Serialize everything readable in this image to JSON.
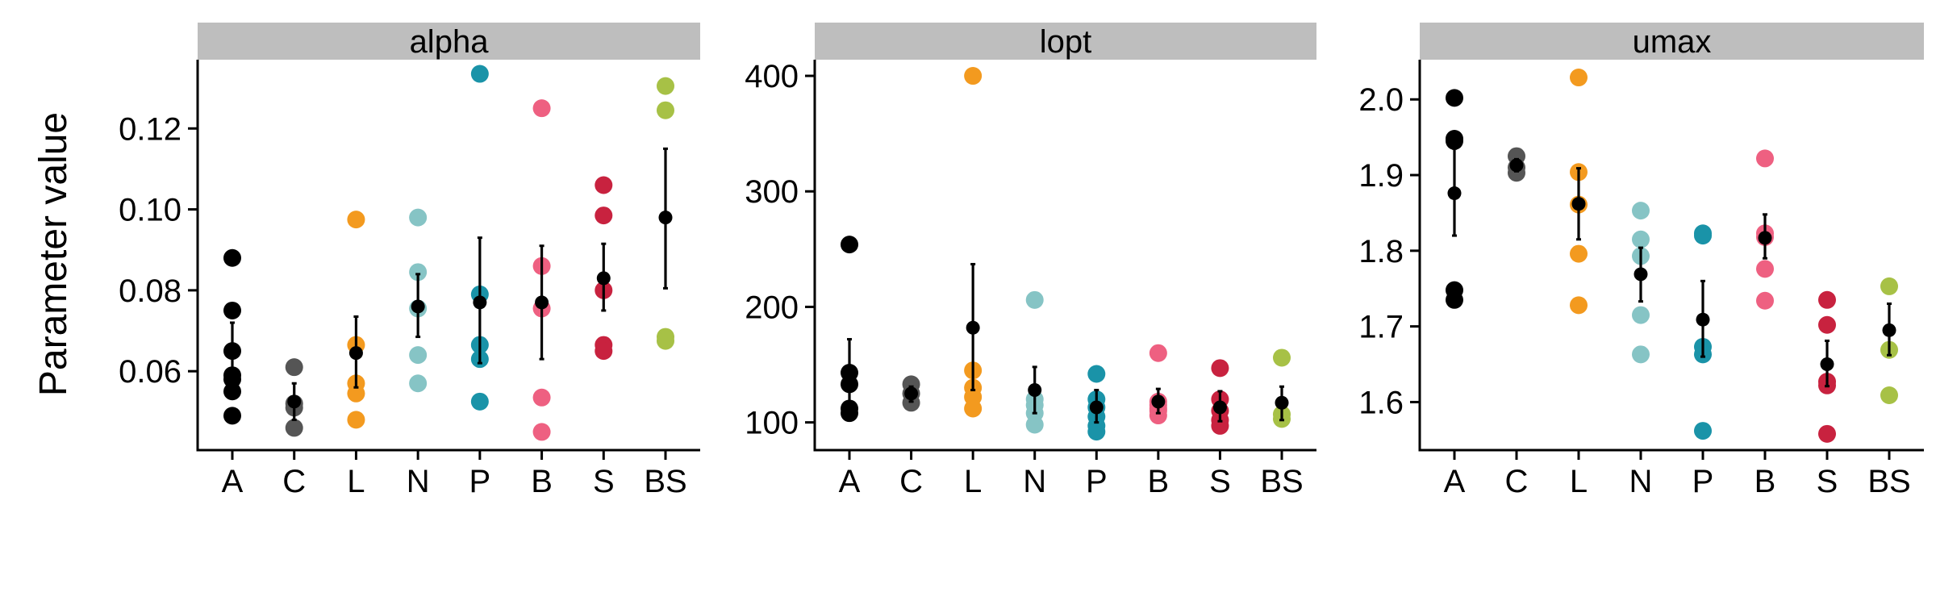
{
  "chart_data": {
    "type": "scatter",
    "ylabel": "Parameter value",
    "categories": [
      "A",
      "C",
      "L",
      "N",
      "P",
      "B",
      "S",
      "BS"
    ],
    "colors": {
      "A": "#000000",
      "C": "#555555",
      "L": "#F39A1F",
      "N": "#86C4C5",
      "P": "#1A93A8",
      "B": "#EE6081",
      "S": "#C8223F",
      "BS": "#A7C146",
      "mean": "#000000",
      "strip": "#BEBEBE"
    },
    "panels": [
      {
        "title": "alpha",
        "ylim": [
          0.0405,
          0.137
        ],
        "yticks": [
          0.06,
          0.08,
          0.1,
          0.12
        ],
        "ytick_labels": [
          "0.06",
          "0.08",
          "0.10",
          "0.12"
        ],
        "groups": [
          {
            "cat": "A",
            "points": [
              0.088,
              0.075,
              0.065,
              0.059,
              0.058,
              0.055,
              0.049
            ],
            "mean": 0.065,
            "lo": 0.058,
            "hi": 0.072
          },
          {
            "cat": "C",
            "points": [
              0.061,
              0.052,
              0.051,
              0.046
            ],
            "mean": 0.0525,
            "lo": 0.048,
            "hi": 0.057
          },
          {
            "cat": "L",
            "points": [
              0.0975,
              0.0665,
              0.057,
              0.0545,
              0.048
            ],
            "mean": 0.0645,
            "lo": 0.056,
            "hi": 0.0735
          },
          {
            "cat": "N",
            "points": [
              0.098,
              0.0845,
              0.0755,
              0.064,
              0.057
            ],
            "mean": 0.076,
            "lo": 0.0685,
            "hi": 0.084
          },
          {
            "cat": "P",
            "points": [
              0.1335,
              0.079,
              0.0665,
              0.063,
              0.0525
            ],
            "mean": 0.077,
            "lo": 0.062,
            "hi": 0.093
          },
          {
            "cat": "B",
            "points": [
              0.125,
              0.086,
              0.0755,
              0.0535,
              0.045
            ],
            "mean": 0.077,
            "lo": 0.063,
            "hi": 0.091
          },
          {
            "cat": "S",
            "points": [
              0.106,
              0.0985,
              0.08,
              0.0665,
              0.065
            ],
            "mean": 0.083,
            "lo": 0.075,
            "hi": 0.0915
          },
          {
            "cat": "BS",
            "points": [
              0.1305,
              0.1245,
              0.0685,
              0.0675
            ],
            "mean": 0.098,
            "lo": 0.0805,
            "hi": 0.115
          }
        ]
      },
      {
        "title": "lopt",
        "ylim": [
          76,
          414
        ],
        "yticks": [
          100,
          200,
          300,
          400
        ],
        "ytick_labels": [
          "100",
          "200",
          "300",
          "400"
        ],
        "groups": [
          {
            "cat": "A",
            "points": [
              254,
              143,
              133,
              112,
              108
            ],
            "mean": 133,
            "lo": 110,
            "hi": 172
          },
          {
            "cat": "C",
            "points": [
              133,
              125,
              117
            ],
            "mean": 125,
            "lo": 118,
            "hi": 131
          },
          {
            "cat": "L",
            "points": [
              400,
              145,
              130,
              122,
              112
            ],
            "mean": 182,
            "lo": 128,
            "hi": 237
          },
          {
            "cat": "N",
            "points": [
              206,
              120,
              115,
              108,
              98
            ],
            "mean": 128,
            "lo": 108,
            "hi": 148
          },
          {
            "cat": "P",
            "points": [
              142,
              120,
              113,
              105,
              97,
              92
            ],
            "mean": 113,
            "lo": 100,
            "hi": 128
          },
          {
            "cat": "B",
            "points": [
              160,
              118,
              115,
              112,
              110,
              106
            ],
            "mean": 118,
            "lo": 108,
            "hi": 129
          },
          {
            "cat": "S",
            "points": [
              147,
              120,
              110,
              102,
              97
            ],
            "mean": 113,
            "lo": 101,
            "hi": 127
          },
          {
            "cat": "BS",
            "points": [
              156,
              107,
              103
            ],
            "mean": 117,
            "lo": 102,
            "hi": 131
          }
        ]
      },
      {
        "title": "umax",
        "ylim": [
          1.5365,
          2.0525
        ],
        "yticks": [
          1.6,
          1.7,
          1.8,
          1.9,
          2.0
        ],
        "ytick_labels": [
          "1.6",
          "1.7",
          "1.8",
          "1.9",
          "2.0"
        ],
        "groups": [
          {
            "cat": "A",
            "points": [
              2.002,
              1.948,
              1.945,
              1.748,
              1.735
            ],
            "mean": 1.876,
            "lo": 1.82,
            "hi": 1.935
          },
          {
            "cat": "C",
            "points": [
              1.925,
              1.91,
              1.903
            ],
            "mean": 1.913,
            "lo": 1.905,
            "hi": 1.921
          },
          {
            "cat": "L",
            "points": [
              2.029,
              1.904,
              1.861,
              1.796,
              1.728
            ],
            "mean": 1.862,
            "lo": 1.815,
            "hi": 1.909
          },
          {
            "cat": "N",
            "points": [
              1.853,
              1.815,
              1.793,
              1.715,
              1.663
            ],
            "mean": 1.769,
            "lo": 1.733,
            "hi": 1.804
          },
          {
            "cat": "P",
            "points": [
              1.823,
              1.82,
              1.673,
              1.663,
              1.562
            ],
            "mean": 1.709,
            "lo": 1.66,
            "hi": 1.76
          },
          {
            "cat": "B",
            "points": [
              1.922,
              1.823,
              1.818,
              1.776,
              1.734
            ],
            "mean": 1.817,
            "lo": 1.79,
            "hi": 1.848
          },
          {
            "cat": "S",
            "points": [
              1.735,
              1.702,
              1.627,
              1.622,
              1.558
            ],
            "mean": 1.65,
            "lo": 1.621,
            "hi": 1.681
          },
          {
            "cat": "BS",
            "points": [
              1.753,
              1.669,
              1.609
            ],
            "mean": 1.695,
            "lo": 1.662,
            "hi": 1.73
          }
        ]
      }
    ]
  }
}
